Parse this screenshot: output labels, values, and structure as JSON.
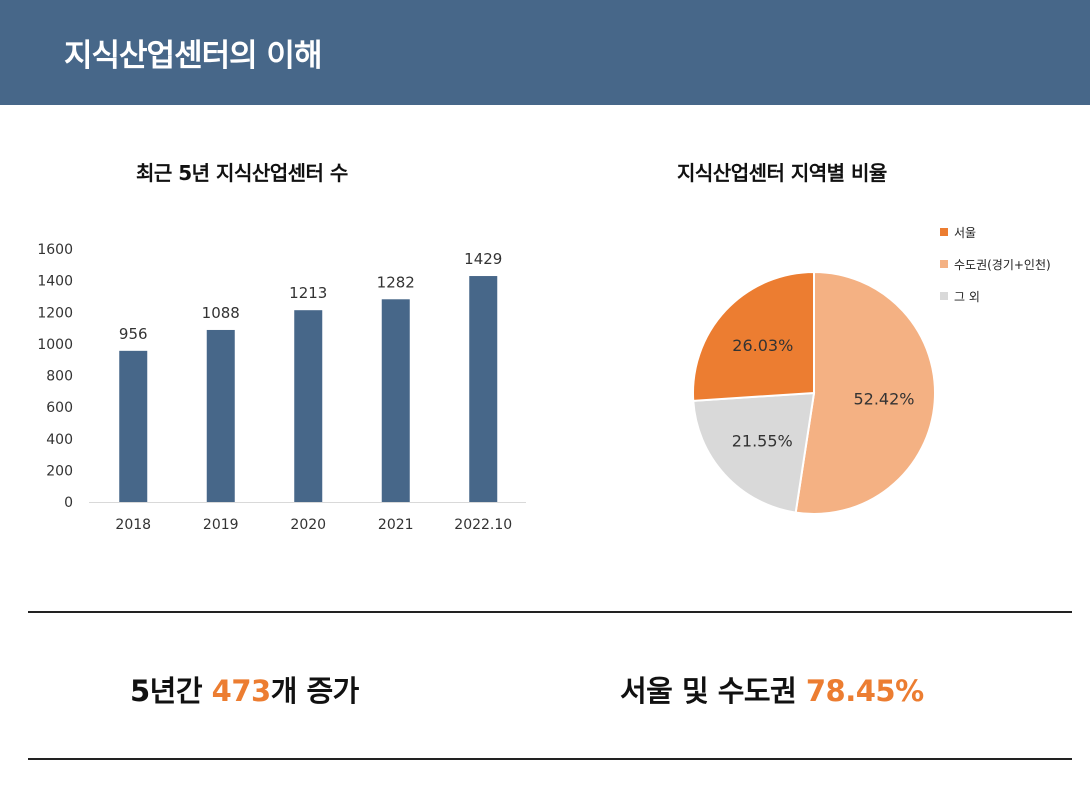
{
  "header": {
    "title": "지식산업센터의 이해"
  },
  "chart_data": [
    {
      "type": "bar",
      "title": "최근 5년 지식산업센터 수",
      "categories": [
        "2018",
        "2019",
        "2020",
        "2021",
        "2022.10"
      ],
      "values": [
        956,
        1088,
        1213,
        1282,
        1429
      ],
      "yticks": [
        "0",
        "200",
        "400",
        "600",
        "800",
        "1000",
        "1200",
        "1400",
        "1600"
      ],
      "ylim": [
        0,
        1600
      ],
      "bar_color": "#476789",
      "grid": false,
      "data_labels": true
    },
    {
      "type": "pie",
      "title": "지식산업센터 지역별 비율",
      "slices": [
        {
          "name": "서울",
          "value": 26.03,
          "label": "26.03%",
          "color": "#ec7d31"
        },
        {
          "name": "수도권(경기+인천)",
          "value": 52.42,
          "label": "52.42%",
          "color": "#f4b183"
        },
        {
          "name": "그 외",
          "value": 21.55,
          "label": "21.55%",
          "color": "#d9d9d9"
        }
      ],
      "legend_position": "top-right"
    }
  ],
  "summary": {
    "left": {
      "prefix": "5년간 ",
      "highlight": "473",
      "suffix": "개 증가"
    },
    "right": {
      "prefix": "서울 및 수도권 ",
      "highlight": "78.45%"
    }
  },
  "colors": {
    "header_bg": "#476789",
    "accent": "#ec7d31"
  }
}
